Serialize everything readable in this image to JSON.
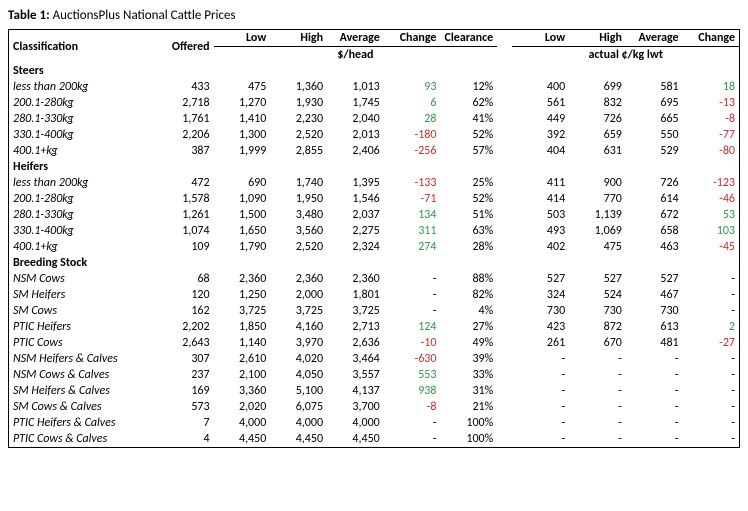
{
  "title_prefix": "Table 1:",
  "title_text": " AuctionsPlus National Cattle Prices",
  "headers": {
    "classification": "Classification",
    "offered": "Offered",
    "low": "Low",
    "high": "High",
    "average": "Average",
    "change": "Change",
    "clearance": "Clearance",
    "group1_sub": "$/head",
    "group2_sub": "actual ¢/kg lwt"
  },
  "sections": [
    {
      "name": "Steers",
      "rows": [
        {
          "cls": "less than 200kg",
          "off": "433",
          "l1": "475",
          "h1": "1,360",
          "a1": "1,013",
          "c1": "93",
          "c1s": "pos",
          "clr": "12%",
          "l2": "400",
          "h2": "699",
          "a2": "581",
          "c2": "18",
          "c2s": "pos"
        },
        {
          "cls": "200.1-280kg",
          "off": "2,718",
          "l1": "1,270",
          "h1": "1,930",
          "a1": "1,745",
          "c1": "6",
          "c1s": "pos",
          "clr": "62%",
          "l2": "561",
          "h2": "832",
          "a2": "695",
          "c2": "-13",
          "c2s": "neg"
        },
        {
          "cls": "280.1-330kg",
          "off": "1,761",
          "l1": "1,410",
          "h1": "2,230",
          "a1": "2,040",
          "c1": "28",
          "c1s": "pos",
          "clr": "41%",
          "l2": "449",
          "h2": "726",
          "a2": "665",
          "c2": "-8",
          "c2s": "neg"
        },
        {
          "cls": "330.1-400kg",
          "off": "2,206",
          "l1": "1,300",
          "h1": "2,520",
          "a1": "2,013",
          "c1": "-180",
          "c1s": "neg",
          "clr": "52%",
          "l2": "392",
          "h2": "659",
          "a2": "550",
          "c2": "-77",
          "c2s": "neg"
        },
        {
          "cls": "400.1+kg",
          "off": "387",
          "l1": "1,999",
          "h1": "2,855",
          "a1": "2,406",
          "c1": "-256",
          "c1s": "neg",
          "clr": "57%",
          "l2": "404",
          "h2": "631",
          "a2": "529",
          "c2": "-80",
          "c2s": "neg"
        }
      ]
    },
    {
      "name": "Heifers",
      "rows": [
        {
          "cls": "less than 200kg",
          "off": "472",
          "l1": "690",
          "h1": "1,740",
          "a1": "1,395",
          "c1": "-133",
          "c1s": "neg",
          "clr": "25%",
          "l2": "411",
          "h2": "900",
          "a2": "726",
          "c2": "-123",
          "c2s": "neg"
        },
        {
          "cls": "200.1-280kg",
          "off": "1,578",
          "l1": "1,090",
          "h1": "1,950",
          "a1": "1,546",
          "c1": "-71",
          "c1s": "neg",
          "clr": "52%",
          "l2": "414",
          "h2": "770",
          "a2": "614",
          "c2": "-46",
          "c2s": "neg"
        },
        {
          "cls": "280.1-330kg",
          "off": "1,261",
          "l1": "1,500",
          "h1": "3,480",
          "a1": "2,037",
          "c1": "134",
          "c1s": "pos",
          "clr": "51%",
          "l2": "503",
          "h2": "1,139",
          "a2": "672",
          "c2": "53",
          "c2s": "pos"
        },
        {
          "cls": "330.1-400kg",
          "off": "1,074",
          "l1": "1,650",
          "h1": "3,560",
          "a1": "2,275",
          "c1": "311",
          "c1s": "pos",
          "clr": "63%",
          "l2": "493",
          "h2": "1,069",
          "a2": "658",
          "c2": "103",
          "c2s": "pos"
        },
        {
          "cls": "400.1+kg",
          "off": "109",
          "l1": "1,790",
          "h1": "2,520",
          "a1": "2,324",
          "c1": "274",
          "c1s": "pos",
          "clr": "28%",
          "l2": "402",
          "h2": "475",
          "a2": "463",
          "c2": "-45",
          "c2s": "neg"
        }
      ]
    },
    {
      "name": "Breeding Stock",
      "rows": [
        {
          "cls": "NSM Cows",
          "off": "68",
          "l1": "2,360",
          "h1": "2,360",
          "a1": "2,360",
          "c1": "-",
          "c1s": "",
          "clr": "88%",
          "l2": "527",
          "h2": "527",
          "a2": "527",
          "c2": "-",
          "c2s": ""
        },
        {
          "cls": "SM Heifers",
          "off": "120",
          "l1": "1,250",
          "h1": "2,000",
          "a1": "1,801",
          "c1": "-",
          "c1s": "",
          "clr": "82%",
          "l2": "324",
          "h2": "524",
          "a2": "467",
          "c2": "-",
          "c2s": ""
        },
        {
          "cls": "SM Cows",
          "off": "162",
          "l1": "3,725",
          "h1": "3,725",
          "a1": "3,725",
          "c1": "-",
          "c1s": "",
          "clr": "4%",
          "l2": "730",
          "h2": "730",
          "a2": "730",
          "c2": "-",
          "c2s": ""
        },
        {
          "cls": "PTIC Heifers",
          "off": "2,202",
          "l1": "1,850",
          "h1": "4,160",
          "a1": "2,713",
          "c1": "124",
          "c1s": "pos",
          "clr": "27%",
          "l2": "423",
          "h2": "872",
          "a2": "613",
          "c2": "2",
          "c2s": "pos"
        },
        {
          "cls": "PTIC Cows",
          "off": "2,643",
          "l1": "1,140",
          "h1": "3,970",
          "a1": "2,636",
          "c1": "-10",
          "c1s": "neg",
          "clr": "49%",
          "l2": "261",
          "h2": "670",
          "a2": "481",
          "c2": "-27",
          "c2s": "neg"
        },
        {
          "cls": "NSM Heifers & Calves",
          "off": "307",
          "l1": "2,610",
          "h1": "4,020",
          "a1": "3,464",
          "c1": "-630",
          "c1s": "neg",
          "clr": "39%",
          "l2": "-",
          "h2": "-",
          "a2": "-",
          "c2": "-",
          "c2s": ""
        },
        {
          "cls": "NSM Cows & Calves",
          "off": "237",
          "l1": "2,100",
          "h1": "4,050",
          "a1": "3,557",
          "c1": "553",
          "c1s": "pos",
          "clr": "33%",
          "l2": "-",
          "h2": "-",
          "a2": "-",
          "c2": "-",
          "c2s": ""
        },
        {
          "cls": "SM Heifers & Calves",
          "off": "169",
          "l1": "3,360",
          "h1": "5,100",
          "a1": "4,137",
          "c1": "938",
          "c1s": "pos",
          "clr": "31%",
          "l2": "-",
          "h2": "-",
          "a2": "-",
          "c2": "-",
          "c2s": ""
        },
        {
          "cls": "SM Cows & Calves",
          "off": "573",
          "l1": "2,020",
          "h1": "6,075",
          "a1": "3,700",
          "c1": "-8",
          "c1s": "neg",
          "clr": "21%",
          "l2": "-",
          "h2": "-",
          "a2": "-",
          "c2": "-",
          "c2s": ""
        },
        {
          "cls": "PTIC Heifers & Calves",
          "off": "7",
          "l1": "4,000",
          "h1": "4,000",
          "a1": "4,000",
          "c1": "-",
          "c1s": "",
          "clr": "100%",
          "l2": "-",
          "h2": "-",
          "a2": "-",
          "c2": "-",
          "c2s": ""
        },
        {
          "cls": "PTIC Cows & Calves",
          "off": "4",
          "l1": "4,450",
          "h1": "4,450",
          "a1": "4,450",
          "c1": "-",
          "c1s": "",
          "clr": "100%",
          "l2": "-",
          "h2": "-",
          "a2": "-",
          "c2": "-",
          "c2s": ""
        }
      ]
    }
  ]
}
